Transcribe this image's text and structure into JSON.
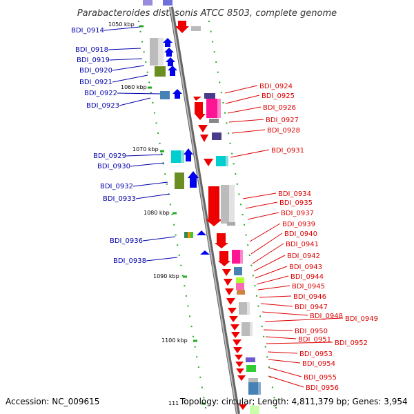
{
  "title": "Parabacteroides distasonis ATCC 8503, complete genome",
  "accession": "Accession: NC_009615",
  "topology": "Topology: circular; Length: 4,811,379 bp; Genes: 3,954",
  "colors": {
    "left_label": "#0000aa",
    "right_label": "#dd0000",
    "backbone": "#888888",
    "tick": "#22aa22"
  },
  "scale": {
    "ticks": [
      {
        "label": "1050 kbp"
      },
      {
        "label": "1060 kbp"
      },
      {
        "label": "1070 kbp"
      },
      {
        "label": "1080 kbp"
      },
      {
        "label": "1090 kbp"
      },
      {
        "label": "1100 kbp"
      },
      {
        "label": "111"
      }
    ]
  },
  "genes_left": [
    {
      "label": "BDI_0914"
    },
    {
      "label": "BDI_0918"
    },
    {
      "label": "BDI_0919"
    },
    {
      "label": "BDI_0920"
    },
    {
      "label": "BDI_0921"
    },
    {
      "label": "BDI_0922"
    },
    {
      "label": "BDI_0923"
    },
    {
      "label": "BDI_0929"
    },
    {
      "label": "BDI_0930"
    },
    {
      "label": "BDI_0932"
    },
    {
      "label": "BDI_0933"
    },
    {
      "label": "BDI_0936"
    },
    {
      "label": "BDI_0938"
    }
  ],
  "genes_right": [
    {
      "label": "BDI_0924"
    },
    {
      "label": "BDI_0925"
    },
    {
      "label": "BDI_0926"
    },
    {
      "label": "BDI_0927"
    },
    {
      "label": "BDI_0928"
    },
    {
      "label": "BDI_0931"
    },
    {
      "label": "BDI_0934"
    },
    {
      "label": "BDI_0935"
    },
    {
      "label": "BDI_0937"
    },
    {
      "label": "BDI_0939"
    },
    {
      "label": "BDI_0940"
    },
    {
      "label": "BDI_0941"
    },
    {
      "label": "BDI_0942"
    },
    {
      "label": "BDI_0943"
    },
    {
      "label": "BDI_0944"
    },
    {
      "label": "BDI_0945"
    },
    {
      "label": "BDI_0946"
    },
    {
      "label": "BDI_0947"
    },
    {
      "label": "BDI_0948"
    },
    {
      "label": "BDI_0949"
    },
    {
      "label": "BDI_0950"
    },
    {
      "label": "BDI_0951"
    },
    {
      "label": "BDI_0952"
    },
    {
      "label": "BDI_0953"
    },
    {
      "label": "BDI_0954"
    },
    {
      "label": "BDI_0955"
    },
    {
      "label": "BDI_0956"
    }
  ]
}
